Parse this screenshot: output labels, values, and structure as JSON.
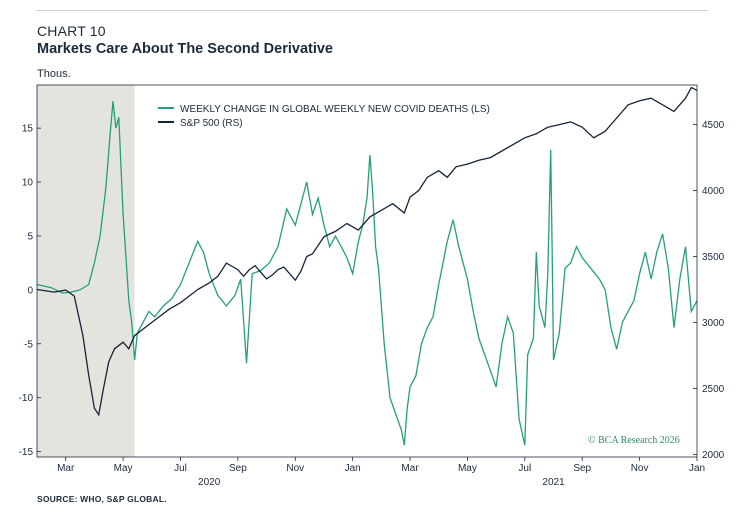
{
  "header": {
    "label": "CHART 10",
    "title": "Markets Care About The Second Derivative",
    "units": "Thous."
  },
  "footer": {
    "source": "SOURCE: WHO, S&P GLOBAL.",
    "watermark": "© BCA Research 2026"
  },
  "colors": {
    "covid": "#23a07a",
    "sp500": "#16233b",
    "shade": "#e4e4de",
    "axis": "#1b2a3a"
  },
  "chart_data": {
    "type": "line",
    "title": "Markets Care About The Second Derivative",
    "ylabel_left": "Thous.",
    "x_month_labels": [
      "Mar",
      "May",
      "Jul",
      "Sep",
      "Nov",
      "Jan",
      "Mar",
      "May",
      "Jul",
      "Sep",
      "Nov",
      "Jan"
    ],
    "x_month_offsets": [
      1,
      3,
      5,
      7,
      9,
      11,
      13,
      15,
      17,
      19,
      21,
      23
    ],
    "x_range_months": [
      0.0,
      23.0
    ],
    "year_labels": [
      {
        "text": "2020",
        "month_offset": 6.0
      },
      {
        "text": "2021",
        "month_offset": 18.0
      }
    ],
    "left_axis": {
      "range": [
        -15.5,
        19
      ],
      "ticks": [
        15,
        10,
        5,
        0,
        -5,
        -10,
        -15
      ]
    },
    "right_axis": {
      "range": [
        1980,
        4800
      ],
      "ticks": [
        4500,
        4000,
        3500,
        3000,
        2500,
        2000
      ]
    },
    "shaded_region": {
      "from_month": 0.0,
      "to_month": 3.4
    },
    "legend": [
      {
        "name": "WEEKLY CHANGE IN GLOBAL WEEKLY NEW COVID DEATHS (LS)",
        "axis": "left"
      },
      {
        "name": "S&P 500 (RS)",
        "axis": "right"
      }
    ],
    "series": [
      {
        "name": "WEEKLY CHANGE IN GLOBAL WEEKLY NEW COVID DEATHS (LS)",
        "axis": "left",
        "points": [
          [
            0.0,
            0.5
          ],
          [
            0.5,
            0.2
          ],
          [
            0.9,
            -0.3
          ],
          [
            1.2,
            -0.2
          ],
          [
            1.5,
            0.0
          ],
          [
            1.8,
            0.5
          ],
          [
            2.0,
            2.5
          ],
          [
            2.2,
            5.0
          ],
          [
            2.4,
            9.5
          ],
          [
            2.55,
            14.5
          ],
          [
            2.65,
            17.5
          ],
          [
            2.75,
            15.0
          ],
          [
            2.85,
            16.0
          ],
          [
            3.0,
            7.0
          ],
          [
            3.1,
            3.0
          ],
          [
            3.2,
            -1.0
          ],
          [
            3.3,
            -3.0
          ],
          [
            3.4,
            -6.5
          ],
          [
            3.5,
            -4.0
          ],
          [
            3.7,
            -3.0
          ],
          [
            3.9,
            -2.0
          ],
          [
            4.1,
            -2.5
          ],
          [
            4.4,
            -1.5
          ],
          [
            4.7,
            -0.8
          ],
          [
            5.0,
            0.5
          ],
          [
            5.3,
            2.5
          ],
          [
            5.6,
            4.5
          ],
          [
            5.8,
            3.5
          ],
          [
            6.0,
            1.5
          ],
          [
            6.3,
            -0.5
          ],
          [
            6.6,
            -1.5
          ],
          [
            6.9,
            -0.5
          ],
          [
            7.1,
            1.0
          ],
          [
            7.3,
            -6.8
          ],
          [
            7.5,
            1.5
          ],
          [
            7.8,
            1.8
          ],
          [
            8.1,
            2.5
          ],
          [
            8.4,
            4.0
          ],
          [
            8.7,
            7.5
          ],
          [
            9.0,
            6.0
          ],
          [
            9.2,
            8.0
          ],
          [
            9.4,
            10.0
          ],
          [
            9.6,
            7.0
          ],
          [
            9.8,
            8.5
          ],
          [
            10.0,
            6.0
          ],
          [
            10.2,
            4.0
          ],
          [
            10.4,
            5.0
          ],
          [
            10.6,
            4.0
          ],
          [
            10.8,
            3.0
          ],
          [
            11.0,
            1.5
          ],
          [
            11.2,
            4.5
          ],
          [
            11.35,
            6.0
          ],
          [
            11.5,
            8.5
          ],
          [
            11.6,
            12.5
          ],
          [
            11.7,
            9.0
          ],
          [
            11.8,
            4.0
          ],
          [
            11.9,
            2.0
          ],
          [
            12.1,
            -5.0
          ],
          [
            12.3,
            -10.0
          ],
          [
            12.5,
            -11.5
          ],
          [
            12.7,
            -13.0
          ],
          [
            12.8,
            -14.4
          ],
          [
            12.9,
            -11.0
          ],
          [
            13.0,
            -9.0
          ],
          [
            13.2,
            -8.0
          ],
          [
            13.4,
            -5.0
          ],
          [
            13.6,
            -3.5
          ],
          [
            13.8,
            -2.5
          ],
          [
            14.0,
            0.5
          ],
          [
            14.3,
            4.5
          ],
          [
            14.5,
            6.5
          ],
          [
            14.7,
            4.0
          ],
          [
            15.0,
            1.0
          ],
          [
            15.2,
            -2.0
          ],
          [
            15.4,
            -4.5
          ],
          [
            15.6,
            -6.0
          ],
          [
            15.8,
            -7.5
          ],
          [
            16.0,
            -9.0
          ],
          [
            16.2,
            -5.0
          ],
          [
            16.4,
            -2.5
          ],
          [
            16.6,
            -4.0
          ],
          [
            16.8,
            -12.0
          ],
          [
            17.0,
            -14.4
          ],
          [
            17.1,
            -6.0
          ],
          [
            17.3,
            -4.5
          ],
          [
            17.4,
            3.5
          ],
          [
            17.5,
            -1.5
          ],
          [
            17.7,
            -3.5
          ],
          [
            17.8,
            1.5
          ],
          [
            17.9,
            13.0
          ],
          [
            17.95,
            4.0
          ],
          [
            18.0,
            -6.5
          ],
          [
            18.2,
            -4.0
          ],
          [
            18.4,
            2.0
          ],
          [
            18.6,
            2.5
          ],
          [
            18.8,
            4.0
          ],
          [
            19.0,
            3.0
          ],
          [
            19.3,
            2.0
          ],
          [
            19.6,
            1.0
          ],
          [
            19.8,
            0.0
          ],
          [
            20.0,
            -3.5
          ],
          [
            20.2,
            -5.5
          ],
          [
            20.4,
            -3.0
          ],
          [
            20.6,
            -2.0
          ],
          [
            20.8,
            -1.0
          ],
          [
            21.0,
            1.5
          ],
          [
            21.2,
            3.5
          ],
          [
            21.4,
            1.0
          ],
          [
            21.6,
            3.5
          ],
          [
            21.8,
            5.2
          ],
          [
            22.0,
            2.0
          ],
          [
            22.2,
            -3.5
          ],
          [
            22.4,
            1.0
          ],
          [
            22.6,
            4.0
          ],
          [
            22.8,
            -2.0
          ],
          [
            23.0,
            -1.0
          ]
        ]
      },
      {
        "name": "S&P 500 (RS)",
        "axis": "right",
        "points": [
          [
            0.0,
            3250
          ],
          [
            0.6,
            3230
          ],
          [
            1.0,
            3245
          ],
          [
            1.3,
            3200
          ],
          [
            1.6,
            2900
          ],
          [
            1.8,
            2600
          ],
          [
            2.0,
            2350
          ],
          [
            2.15,
            2300
          ],
          [
            2.3,
            2480
          ],
          [
            2.5,
            2700
          ],
          [
            2.7,
            2800
          ],
          [
            3.0,
            2850
          ],
          [
            3.2,
            2800
          ],
          [
            3.4,
            2900
          ],
          [
            3.7,
            2950
          ],
          [
            4.0,
            3000
          ],
          [
            4.3,
            3050
          ],
          [
            4.6,
            3100
          ],
          [
            5.0,
            3150
          ],
          [
            5.3,
            3200
          ],
          [
            5.6,
            3250
          ],
          [
            6.0,
            3300
          ],
          [
            6.3,
            3350
          ],
          [
            6.6,
            3450
          ],
          [
            7.0,
            3400
          ],
          [
            7.2,
            3350
          ],
          [
            7.4,
            3400
          ],
          [
            7.6,
            3430
          ],
          [
            7.8,
            3380
          ],
          [
            8.0,
            3330
          ],
          [
            8.2,
            3360
          ],
          [
            8.4,
            3400
          ],
          [
            8.6,
            3420
          ],
          [
            9.0,
            3320
          ],
          [
            9.2,
            3390
          ],
          [
            9.4,
            3500
          ],
          [
            9.6,
            3520
          ],
          [
            10.0,
            3650
          ],
          [
            10.4,
            3690
          ],
          [
            10.8,
            3750
          ],
          [
            11.2,
            3700
          ],
          [
            11.6,
            3800
          ],
          [
            12.0,
            3850
          ],
          [
            12.4,
            3900
          ],
          [
            12.8,
            3830
          ],
          [
            13.0,
            3950
          ],
          [
            13.3,
            4000
          ],
          [
            13.6,
            4100
          ],
          [
            14.0,
            4150
          ],
          [
            14.3,
            4100
          ],
          [
            14.6,
            4180
          ],
          [
            15.0,
            4200
          ],
          [
            15.4,
            4230
          ],
          [
            15.8,
            4250
          ],
          [
            16.2,
            4300
          ],
          [
            16.6,
            4350
          ],
          [
            17.0,
            4400
          ],
          [
            17.4,
            4430
          ],
          [
            17.8,
            4480
          ],
          [
            18.2,
            4500
          ],
          [
            18.6,
            4520
          ],
          [
            19.0,
            4480
          ],
          [
            19.4,
            4400
          ],
          [
            19.8,
            4450
          ],
          [
            20.2,
            4550
          ],
          [
            20.6,
            4650
          ],
          [
            21.0,
            4680
          ],
          [
            21.4,
            4700
          ],
          [
            21.8,
            4650
          ],
          [
            22.2,
            4600
          ],
          [
            22.6,
            4700
          ],
          [
            22.8,
            4780
          ],
          [
            23.0,
            4760
          ]
        ]
      }
    ]
  }
}
